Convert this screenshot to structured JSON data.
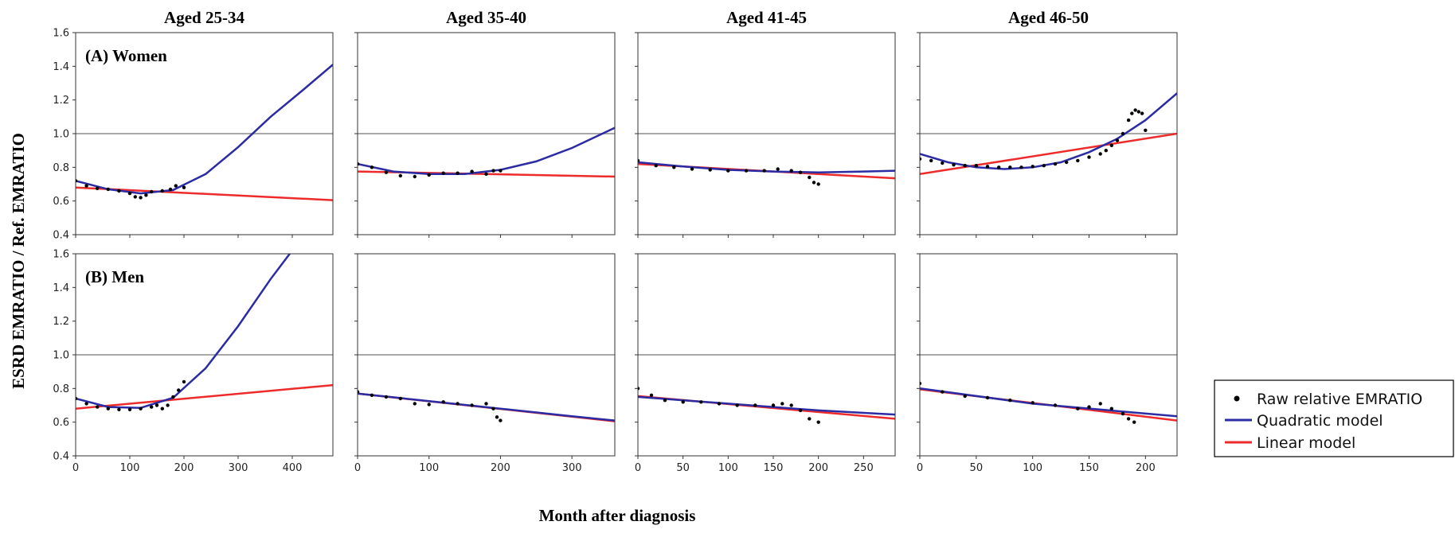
{
  "chart_data": {
    "type": "line",
    "xlabel": "Month after diagnosis",
    "ylabel": "ESRD EMRATIO / Ref. EMRATIO",
    "ylim": [
      0.4,
      1.6
    ],
    "yticks": [
      "0.4",
      "0.6",
      "0.8",
      "1.0",
      "1.2",
      "1.4",
      "1.6"
    ],
    "reference_line_y": 1.0,
    "grid": false,
    "legend_position": "right",
    "legend": [
      {
        "label": "Raw relative EMRATIO",
        "marker": "dot",
        "color": "#000000"
      },
      {
        "label": "Quadratic model",
        "marker": "line",
        "color": "#2b2ba3"
      },
      {
        "label": "Linear model",
        "marker": "line",
        "color": "#ee2b2b"
      }
    ],
    "column_titles": [
      "Aged 25-34",
      "Aged 35-40",
      "Aged 41-45",
      "Aged 46-50"
    ],
    "row_labels": [
      "(A) Women",
      "(B) Men"
    ],
    "panels": [
      {
        "row": 0,
        "col": 0,
        "xlim": [
          0,
          475
        ],
        "xticks": [
          "0",
          "100",
          "200",
          "300",
          "400"
        ],
        "raw": [
          [
            0,
            0.72
          ],
          [
            20,
            0.69
          ],
          [
            40,
            0.675
          ],
          [
            60,
            0.67
          ],
          [
            80,
            0.66
          ],
          [
            100,
            0.645
          ],
          [
            110,
            0.625
          ],
          [
            120,
            0.62
          ],
          [
            130,
            0.635
          ],
          [
            140,
            0.655
          ],
          [
            160,
            0.66
          ],
          [
            175,
            0.67
          ],
          [
            185,
            0.69
          ],
          [
            200,
            0.68
          ]
        ],
        "quadratic": [
          [
            0,
            0.72
          ],
          [
            60,
            0.67
          ],
          [
            120,
            0.645
          ],
          [
            180,
            0.665
          ],
          [
            240,
            0.76
          ],
          [
            300,
            0.92
          ],
          [
            360,
            1.1
          ],
          [
            420,
            1.26
          ],
          [
            475,
            1.41
          ]
        ],
        "linear": [
          [
            0,
            0.68
          ],
          [
            475,
            0.605
          ]
        ]
      },
      {
        "row": 0,
        "col": 1,
        "xlim": [
          0,
          360
        ],
        "xticks": [
          "0",
          "100",
          "200",
          "300"
        ],
        "raw": [
          [
            0,
            0.82
          ],
          [
            20,
            0.8
          ],
          [
            40,
            0.77
          ],
          [
            60,
            0.75
          ],
          [
            80,
            0.745
          ],
          [
            100,
            0.755
          ],
          [
            120,
            0.765
          ],
          [
            140,
            0.765
          ],
          [
            160,
            0.775
          ],
          [
            180,
            0.76
          ],
          [
            190,
            0.78
          ],
          [
            200,
            0.78
          ]
        ],
        "quadratic": [
          [
            0,
            0.82
          ],
          [
            50,
            0.775
          ],
          [
            100,
            0.76
          ],
          [
            150,
            0.76
          ],
          [
            200,
            0.785
          ],
          [
            250,
            0.835
          ],
          [
            300,
            0.915
          ],
          [
            360,
            1.035
          ]
        ],
        "linear": [
          [
            0,
            0.775
          ],
          [
            360,
            0.745
          ]
        ]
      },
      {
        "row": 0,
        "col": 2,
        "xlim": [
          0,
          285
        ],
        "xticks": [
          "0",
          "50",
          "100",
          "150",
          "200",
          "250"
        ],
        "raw": [
          [
            0,
            0.84
          ],
          [
            20,
            0.81
          ],
          [
            40,
            0.8
          ],
          [
            60,
            0.79
          ],
          [
            80,
            0.785
          ],
          [
            100,
            0.78
          ],
          [
            120,
            0.78
          ],
          [
            140,
            0.78
          ],
          [
            155,
            0.79
          ],
          [
            170,
            0.78
          ],
          [
            180,
            0.77
          ],
          [
            190,
            0.74
          ],
          [
            195,
            0.71
          ],
          [
            200,
            0.7
          ]
        ],
        "quadratic": [
          [
            0,
            0.83
          ],
          [
            50,
            0.805
          ],
          [
            100,
            0.785
          ],
          [
            150,
            0.775
          ],
          [
            200,
            0.77
          ],
          [
            250,
            0.775
          ],
          [
            285,
            0.78
          ]
        ],
        "linear": [
          [
            0,
            0.82
          ],
          [
            285,
            0.735
          ]
        ]
      },
      {
        "row": 0,
        "col": 3,
        "xlim": [
          0,
          228
        ],
        "xticks": [
          "0",
          "50",
          "100",
          "150",
          "200"
        ],
        "raw": [
          [
            0,
            0.85
          ],
          [
            10,
            0.84
          ],
          [
            20,
            0.825
          ],
          [
            30,
            0.815
          ],
          [
            40,
            0.81
          ],
          [
            50,
            0.81
          ],
          [
            60,
            0.805
          ],
          [
            70,
            0.8
          ],
          [
            80,
            0.8
          ],
          [
            90,
            0.8
          ],
          [
            100,
            0.805
          ],
          [
            110,
            0.81
          ],
          [
            120,
            0.82
          ],
          [
            130,
            0.83
          ],
          [
            140,
            0.84
          ],
          [
            150,
            0.86
          ],
          [
            160,
            0.88
          ],
          [
            165,
            0.9
          ],
          [
            170,
            0.93
          ],
          [
            175,
            0.96
          ],
          [
            180,
            1.0
          ],
          [
            185,
            1.08
          ],
          [
            188,
            1.12
          ],
          [
            191,
            1.14
          ],
          [
            194,
            1.13
          ],
          [
            197,
            1.12
          ],
          [
            200,
            1.02
          ]
        ],
        "quadratic": [
          [
            0,
            0.88
          ],
          [
            25,
            0.83
          ],
          [
            50,
            0.8
          ],
          [
            75,
            0.79
          ],
          [
            100,
            0.8
          ],
          [
            125,
            0.83
          ],
          [
            150,
            0.89
          ],
          [
            175,
            0.97
          ],
          [
            200,
            1.08
          ],
          [
            228,
            1.24
          ]
        ],
        "linear": [
          [
            0,
            0.76
          ],
          [
            228,
            1.0
          ]
        ]
      },
      {
        "row": 1,
        "col": 0,
        "xlim": [
          0,
          475
        ],
        "xticks": [
          "0",
          "100",
          "200",
          "300",
          "400"
        ],
        "raw": [
          [
            0,
            0.74
          ],
          [
            20,
            0.71
          ],
          [
            40,
            0.69
          ],
          [
            60,
            0.68
          ],
          [
            80,
            0.675
          ],
          [
            100,
            0.675
          ],
          [
            120,
            0.68
          ],
          [
            140,
            0.69
          ],
          [
            150,
            0.7
          ],
          [
            160,
            0.68
          ],
          [
            170,
            0.7
          ],
          [
            180,
            0.75
          ],
          [
            190,
            0.79
          ],
          [
            200,
            0.84
          ]
        ],
        "quadratic": [
          [
            0,
            0.74
          ],
          [
            60,
            0.69
          ],
          [
            120,
            0.685
          ],
          [
            180,
            0.745
          ],
          [
            240,
            0.92
          ],
          [
            300,
            1.17
          ],
          [
            360,
            1.45
          ],
          [
            400,
            1.62
          ]
        ],
        "linear": [
          [
            0,
            0.68
          ],
          [
            475,
            0.82
          ]
        ]
      },
      {
        "row": 1,
        "col": 1,
        "xlim": [
          0,
          360
        ],
        "xticks": [
          "0",
          "100",
          "200",
          "300"
        ],
        "raw": [
          [
            0,
            0.78
          ],
          [
            20,
            0.76
          ],
          [
            40,
            0.75
          ],
          [
            60,
            0.74
          ],
          [
            80,
            0.71
          ],
          [
            100,
            0.705
          ],
          [
            120,
            0.72
          ],
          [
            140,
            0.71
          ],
          [
            160,
            0.7
          ],
          [
            180,
            0.71
          ],
          [
            190,
            0.68
          ],
          [
            195,
            0.63
          ],
          [
            200,
            0.61
          ]
        ],
        "quadratic": [
          [
            0,
            0.77
          ],
          [
            100,
            0.725
          ],
          [
            200,
            0.68
          ],
          [
            300,
            0.635
          ],
          [
            360,
            0.61
          ]
        ],
        "linear": [
          [
            0,
            0.77
          ],
          [
            360,
            0.605
          ]
        ]
      },
      {
        "row": 1,
        "col": 2,
        "xlim": [
          0,
          285
        ],
        "xticks": [
          "0",
          "50",
          "100",
          "150",
          "200",
          "250"
        ],
        "raw": [
          [
            0,
            0.8
          ],
          [
            15,
            0.76
          ],
          [
            30,
            0.73
          ],
          [
            50,
            0.72
          ],
          [
            70,
            0.72
          ],
          [
            90,
            0.71
          ],
          [
            110,
            0.7
          ],
          [
            130,
            0.7
          ],
          [
            150,
            0.7
          ],
          [
            160,
            0.71
          ],
          [
            170,
            0.7
          ],
          [
            180,
            0.67
          ],
          [
            190,
            0.62
          ],
          [
            200,
            0.6
          ]
        ],
        "quadratic": [
          [
            0,
            0.75
          ],
          [
            100,
            0.71
          ],
          [
            200,
            0.67
          ],
          [
            285,
            0.645
          ]
        ],
        "linear": [
          [
            0,
            0.755
          ],
          [
            285,
            0.62
          ]
        ]
      },
      {
        "row": 1,
        "col": 3,
        "xlim": [
          0,
          228
        ],
        "xticks": [
          "0",
          "50",
          "100",
          "150",
          "200"
        ],
        "raw": [
          [
            0,
            0.83
          ],
          [
            20,
            0.78
          ],
          [
            40,
            0.755
          ],
          [
            60,
            0.745
          ],
          [
            80,
            0.73
          ],
          [
            100,
            0.715
          ],
          [
            120,
            0.7
          ],
          [
            140,
            0.68
          ],
          [
            150,
            0.69
          ],
          [
            160,
            0.71
          ],
          [
            170,
            0.68
          ],
          [
            180,
            0.65
          ],
          [
            185,
            0.62
          ],
          [
            190,
            0.6
          ]
        ],
        "quadratic": [
          [
            0,
            0.8
          ],
          [
            100,
            0.71
          ],
          [
            228,
            0.635
          ]
        ],
        "linear": [
          [
            0,
            0.795
          ],
          [
            228,
            0.61
          ]
        ]
      }
    ]
  }
}
